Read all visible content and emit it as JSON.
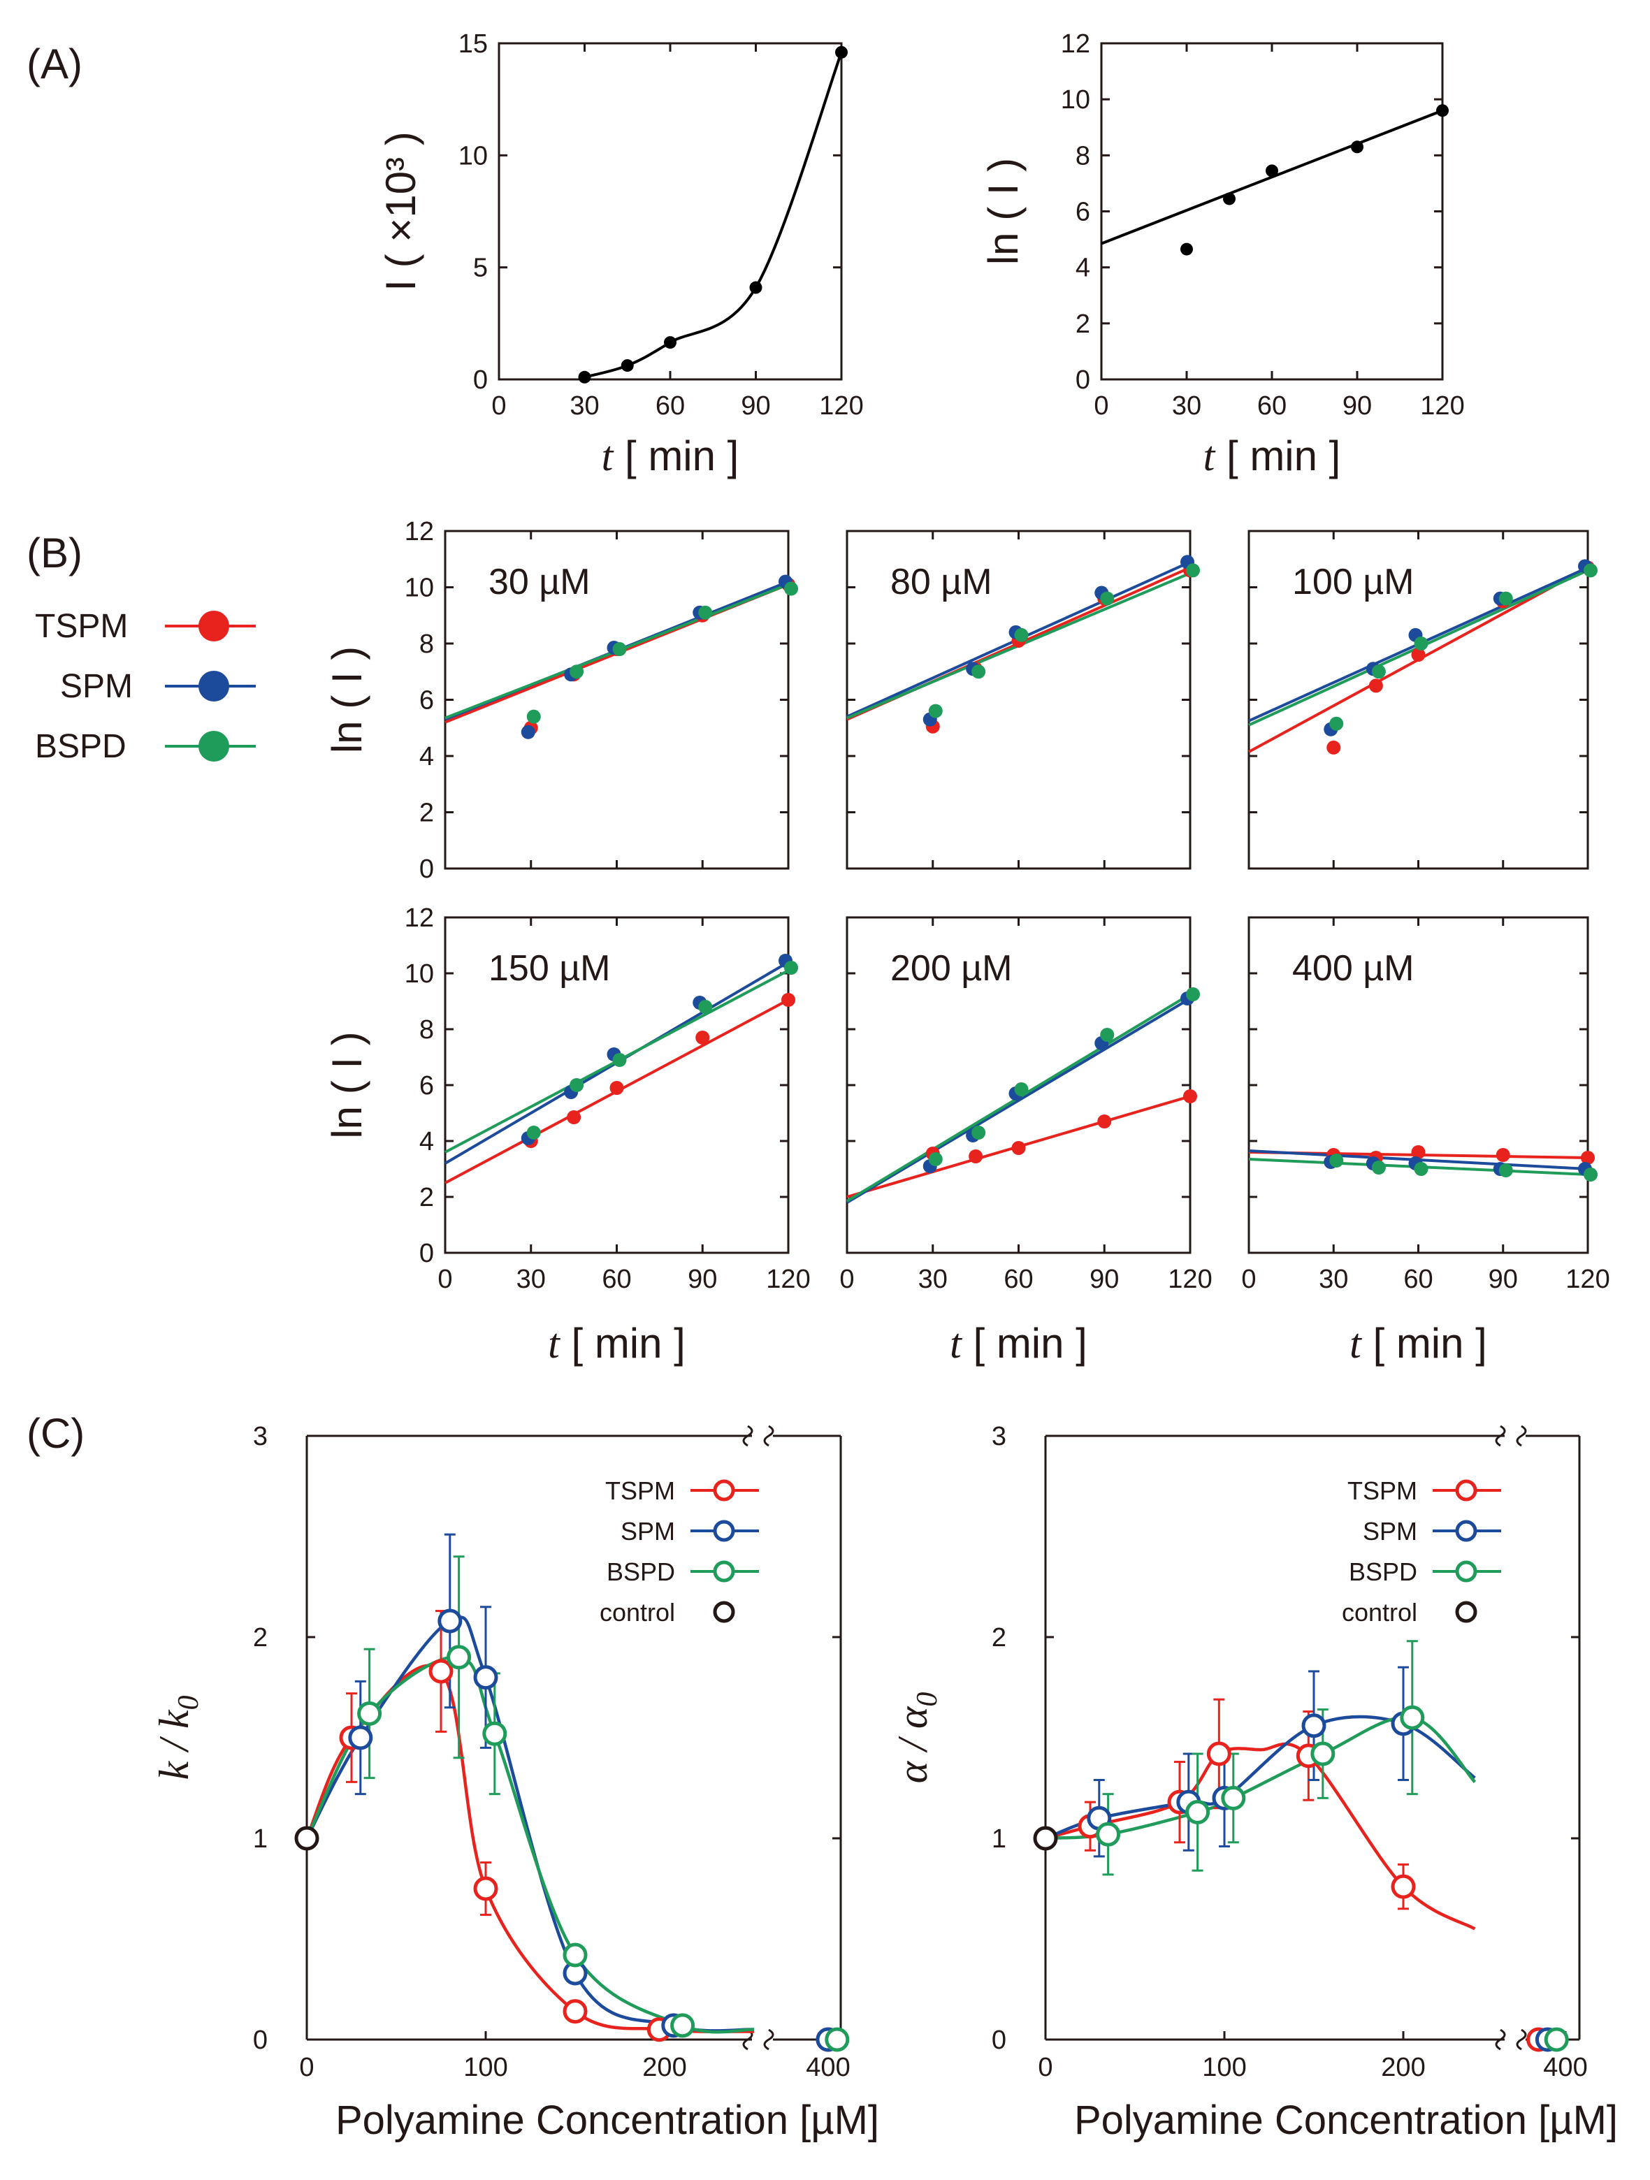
{
  "panel_labels": {
    "a": "(A)",
    "b": "(B)",
    "c": "(C)"
  },
  "legend_b": {
    "items": [
      "TSPM",
      "SPM",
      "BSPD"
    ]
  },
  "chart_data": [
    {
      "id": "A1",
      "type": "line",
      "xlabel": "t [ min ]",
      "ylabel": "I ( ×10³ )",
      "xlim": [
        0,
        120
      ],
      "xticks": [
        "0",
        "30",
        "60",
        "90",
        "120"
      ],
      "ylim": [
        0,
        15
      ],
      "yticks": [
        "0",
        "5",
        "10",
        "15"
      ],
      "series": [
        {
          "name": "data",
          "color": "#000000",
          "x": [
            30,
            45,
            60,
            90,
            120
          ],
          "y": [
            0.1,
            0.62,
            1.65,
            4.1,
            14.6
          ]
        }
      ]
    },
    {
      "id": "A2",
      "type": "scatter",
      "xlabel": "t [ min ]",
      "ylabel": "ln ( I )",
      "xlim": [
        0,
        120
      ],
      "xticks": [
        "0",
        "30",
        "60",
        "90",
        "120"
      ],
      "ylim": [
        0,
        12
      ],
      "yticks": [
        "0",
        "2",
        "4",
        "6",
        "8",
        "10",
        "12"
      ],
      "series": [
        {
          "name": "data",
          "color": "#000000",
          "x": [
            30,
            45,
            60,
            90,
            120
          ],
          "y": [
            4.65,
            6.45,
            7.45,
            8.3,
            9.6
          ],
          "fit": [
            4.85,
            9.6
          ]
        }
      ]
    },
    {
      "id": "B30",
      "type": "scatter",
      "label": "30 µM",
      "xlim": [
        0,
        120
      ],
      "ylim": [
        0,
        12
      ],
      "series": [
        {
          "name": "TSPM",
          "color": "#e8231e",
          "x": [
            30,
            45,
            60,
            90,
            120
          ],
          "y": [
            5.0,
            6.9,
            7.8,
            9.0,
            10.1
          ],
          "fit": [
            5.2,
            10.1
          ]
        },
        {
          "name": "SPM",
          "color": "#1d4b9c",
          "x": [
            30,
            45,
            60,
            90,
            120
          ],
          "y": [
            4.85,
            6.9,
            7.85,
            9.1,
            10.2
          ],
          "fit": [
            5.3,
            10.2
          ]
        },
        {
          "name": "BSPD",
          "color": "#1f9b5a",
          "x": [
            30,
            45,
            60,
            90,
            120
          ],
          "y": [
            5.4,
            7.0,
            7.8,
            9.1,
            9.95
          ],
          "fit": [
            5.35,
            10.1
          ]
        }
      ]
    },
    {
      "id": "B80",
      "type": "scatter",
      "label": "80 µM",
      "xlim": [
        0,
        120
      ],
      "ylim": [
        0,
        12
      ],
      "series": [
        {
          "name": "TSPM",
          "color": "#e8231e",
          "x": [
            30,
            45,
            60,
            90,
            120
          ],
          "y": [
            5.05,
            7.1,
            8.1,
            9.6,
            10.6
          ],
          "fit": [
            5.3,
            10.7
          ]
        },
        {
          "name": "SPM",
          "color": "#1d4b9c",
          "x": [
            30,
            45,
            60,
            90,
            120
          ],
          "y": [
            5.3,
            7.1,
            8.4,
            9.8,
            10.9
          ],
          "fit": [
            5.4,
            10.9
          ]
        },
        {
          "name": "BSPD",
          "color": "#1f9b5a",
          "x": [
            30,
            45,
            60,
            90,
            120
          ],
          "y": [
            5.6,
            7.0,
            8.3,
            9.6,
            10.6
          ],
          "fit": [
            5.35,
            10.5
          ]
        }
      ]
    },
    {
      "id": "B100",
      "type": "scatter",
      "label": "100 µM",
      "xlim": [
        0,
        120
      ],
      "ylim": [
        0,
        12
      ],
      "series": [
        {
          "name": "TSPM",
          "color": "#e8231e",
          "x": [
            30,
            45,
            60,
            90,
            120
          ],
          "y": [
            4.3,
            6.5,
            7.6,
            9.5,
            10.7
          ],
          "fit": [
            4.15,
            10.7
          ]
        },
        {
          "name": "SPM",
          "color": "#1d4b9c",
          "x": [
            30,
            45,
            60,
            90,
            120
          ],
          "y": [
            4.95,
            7.1,
            8.3,
            9.6,
            10.75
          ],
          "fit": [
            5.25,
            10.7
          ]
        },
        {
          "name": "BSPD",
          "color": "#1f9b5a",
          "x": [
            30,
            45,
            60,
            90,
            120
          ],
          "y": [
            5.15,
            7.0,
            8.0,
            9.6,
            10.6
          ],
          "fit": [
            5.1,
            10.6
          ]
        }
      ]
    },
    {
      "id": "B150",
      "type": "scatter",
      "label": "150 µM",
      "xlim": [
        0,
        120
      ],
      "ylim": [
        0,
        12
      ],
      "series": [
        {
          "name": "TSPM",
          "color": "#e8231e",
          "x": [
            30,
            45,
            60,
            90,
            120
          ],
          "y": [
            4.0,
            4.85,
            5.9,
            7.7,
            9.05
          ],
          "fit": [
            2.5,
            9.05
          ]
        },
        {
          "name": "SPM",
          "color": "#1d4b9c",
          "x": [
            30,
            45,
            60,
            90,
            120
          ],
          "y": [
            4.1,
            5.75,
            7.1,
            8.95,
            10.45
          ],
          "fit": [
            3.2,
            10.4
          ]
        },
        {
          "name": "BSPD",
          "color": "#1f9b5a",
          "x": [
            30,
            45,
            60,
            90,
            120
          ],
          "y": [
            4.3,
            6.0,
            6.9,
            8.8,
            10.2
          ],
          "fit": [
            3.6,
            10.1
          ]
        }
      ]
    },
    {
      "id": "B200",
      "type": "scatter",
      "label": "200 µM",
      "xlim": [
        0,
        120
      ],
      "ylim": [
        0,
        12
      ],
      "series": [
        {
          "name": "TSPM",
          "color": "#e8231e",
          "x": [
            30,
            45,
            60,
            90,
            120
          ],
          "y": [
            3.55,
            3.45,
            3.75,
            4.7,
            5.6
          ],
          "fit": [
            2.0,
            5.6
          ]
        },
        {
          "name": "SPM",
          "color": "#1d4b9c",
          "x": [
            30,
            45,
            60,
            90,
            120
          ],
          "y": [
            3.1,
            4.2,
            5.7,
            7.5,
            9.1
          ],
          "fit": [
            1.8,
            9.1
          ]
        },
        {
          "name": "BSPD",
          "color": "#1f9b5a",
          "x": [
            30,
            45,
            60,
            90,
            120
          ],
          "y": [
            3.35,
            4.3,
            5.85,
            7.8,
            9.25
          ],
          "fit": [
            1.85,
            9.25
          ]
        }
      ]
    },
    {
      "id": "B400",
      "type": "scatter",
      "label": "400 µM",
      "xlim": [
        0,
        120
      ],
      "ylim": [
        0,
        12
      ],
      "series": [
        {
          "name": "TSPM",
          "color": "#e8231e",
          "x": [
            30,
            45,
            60,
            90,
            120
          ],
          "y": [
            3.5,
            3.4,
            3.6,
            3.5,
            3.4
          ],
          "fit": [
            3.6,
            3.4
          ]
        },
        {
          "name": "SPM",
          "color": "#1d4b9c",
          "x": [
            30,
            45,
            60,
            90,
            120
          ],
          "y": [
            3.25,
            3.2,
            3.2,
            3.0,
            3.0
          ],
          "fit": [
            3.65,
            3.0
          ]
        },
        {
          "name": "BSPD",
          "color": "#1f9b5a",
          "x": [
            30,
            45,
            60,
            90,
            120
          ],
          "y": [
            3.3,
            3.05,
            3.0,
            2.95,
            2.8
          ],
          "fit": [
            3.35,
            2.8
          ]
        }
      ]
    },
    {
      "id": "B_axes",
      "xlabel": "t [ min ]",
      "ylabel": "ln ( I )",
      "xticks": [
        "0",
        "30",
        "60",
        "90",
        "120"
      ],
      "yticks": [
        "0",
        "2",
        "4",
        "6",
        "8",
        "10",
        "12"
      ]
    },
    {
      "id": "C1",
      "type": "line",
      "xlabel": "Polyamine Concentration [µM]",
      "ylabel": "k / k0",
      "ylim": [
        0,
        3
      ],
      "yticks": [
        "0",
        "1",
        "2",
        "3"
      ],
      "xticks": [
        "0",
        "100",
        "200",
        "400"
      ],
      "legend": [
        "TSPM",
        "SPM",
        "BSPD",
        "control"
      ],
      "series": [
        {
          "name": "TSPM",
          "color": "#e8231e",
          "x": [
            25,
            75,
            100,
            150,
            197,
            400
          ],
          "y": [
            1.5,
            1.83,
            0.75,
            0.14,
            0.05,
            0.0
          ],
          "err": [
            0.22,
            0.3,
            0.13,
            0,
            0,
            0
          ],
          "curve_x": [
            0,
            25,
            75,
            100,
            150,
            200,
            250
          ],
          "curve_y": [
            1.0,
            1.5,
            1.83,
            0.75,
            0.14,
            0.05,
            0.04
          ]
        },
        {
          "name": "SPM",
          "color": "#1d4b9c",
          "x": [
            30,
            80,
            100,
            150,
            205,
            400
          ],
          "y": [
            1.5,
            2.08,
            1.8,
            0.33,
            0.07,
            0.0
          ],
          "err": [
            0.28,
            0.43,
            0.35,
            0,
            0,
            0
          ],
          "curve_x": [
            0,
            30,
            80,
            100,
            150,
            205,
            250
          ],
          "curve_y": [
            1.0,
            1.5,
            2.08,
            1.8,
            0.33,
            0.07,
            0.05
          ]
        },
        {
          "name": "BSPD",
          "color": "#1f9b5a",
          "x": [
            35,
            85,
            105,
            150,
            210,
            405
          ],
          "y": [
            1.62,
            1.9,
            1.52,
            0.42,
            0.07,
            0.0
          ],
          "err": [
            0.32,
            0.5,
            0.3,
            0,
            0,
            0
          ],
          "curve_x": [
            0,
            35,
            85,
            105,
            150,
            210,
            250
          ],
          "curve_y": [
            1.0,
            1.62,
            1.9,
            1.52,
            0.42,
            0.07,
            0.05
          ]
        },
        {
          "name": "control",
          "color": "#231815",
          "x": [
            0
          ],
          "y": [
            1.0
          ]
        }
      ]
    },
    {
      "id": "C2",
      "type": "line",
      "xlabel": "Polyamine Concentration [µM]",
      "ylabel": "α / α0",
      "ylim": [
        0,
        3
      ],
      "yticks": [
        "0",
        "1",
        "2",
        "3"
      ],
      "xticks": [
        "0",
        "100",
        "200",
        "400"
      ],
      "legend": [
        "TSPM",
        "SPM",
        "BSPD",
        "control"
      ],
      "series": [
        {
          "name": "TSPM",
          "color": "#e8231e",
          "x": [
            25,
            75,
            97,
            147,
            200,
            385
          ],
          "y": [
            1.06,
            1.18,
            1.42,
            1.41,
            0.76,
            0.0
          ],
          "err": [
            0.12,
            0.2,
            0.27,
            0.22,
            0.11,
            0
          ],
          "curve_x": [
            0,
            25,
            75,
            97,
            120,
            147,
            200,
            240
          ],
          "curve_y": [
            1.0,
            1.06,
            1.18,
            1.42,
            1.44,
            1.41,
            0.76,
            0.55
          ]
        },
        {
          "name": "SPM",
          "color": "#1d4b9c",
          "x": [
            30,
            80,
            100,
            150,
            200,
            390
          ],
          "y": [
            1.1,
            1.18,
            1.2,
            1.56,
            1.57,
            0.0
          ],
          "err": [
            0.19,
            0.24,
            0.24,
            0.27,
            0.28,
            0
          ],
          "curve_x": [
            0,
            30,
            80,
            100,
            150,
            200,
            240
          ],
          "curve_y": [
            1.0,
            1.1,
            1.18,
            1.2,
            1.56,
            1.57,
            1.3
          ]
        },
        {
          "name": "BSPD",
          "color": "#1f9b5a",
          "x": [
            35,
            85,
            105,
            155,
            205,
            395
          ],
          "y": [
            1.02,
            1.13,
            1.2,
            1.42,
            1.6,
            0.0
          ],
          "err": [
            0.2,
            0.29,
            0.22,
            0.22,
            0.38,
            0
          ],
          "curve_x": [
            0,
            35,
            85,
            105,
            155,
            205,
            240
          ],
          "curve_y": [
            1.0,
            1.02,
            1.13,
            1.2,
            1.42,
            1.6,
            1.28
          ]
        },
        {
          "name": "control",
          "color": "#231815",
          "x": [
            0
          ],
          "y": [
            1.0
          ]
        }
      ]
    }
  ]
}
